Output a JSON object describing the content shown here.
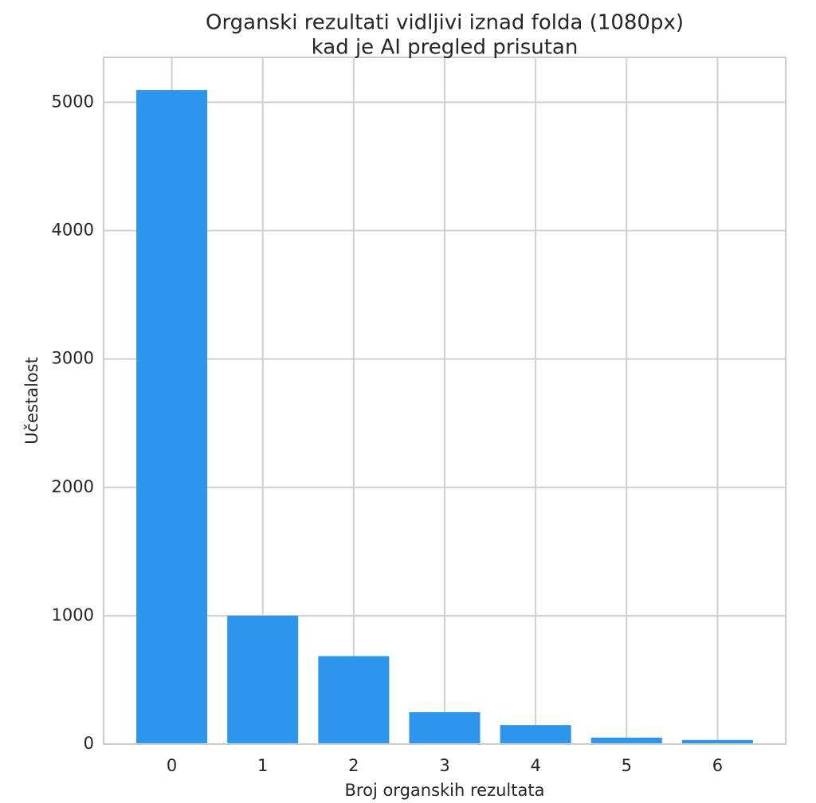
{
  "chart_data": {
    "type": "bar",
    "title_lines": [
      "Organski rezultati vidljivi iznad folda (1080px)",
      "kad je AI pregled prisutan"
    ],
    "xlabel": "Broj organskih rezultata",
    "ylabel": "Učestalost",
    "categories": [
      "0",
      "1",
      "2",
      "3",
      "4",
      "5",
      "6"
    ],
    "values": [
      5095,
      1000,
      685,
      248,
      148,
      50,
      32
    ],
    "yticks": [
      "0",
      "1000",
      "2000",
      "3000",
      "4000",
      "5000"
    ],
    "ylim": [
      0,
      5350
    ],
    "grid": true,
    "bar_color": "#2d96ea"
  }
}
